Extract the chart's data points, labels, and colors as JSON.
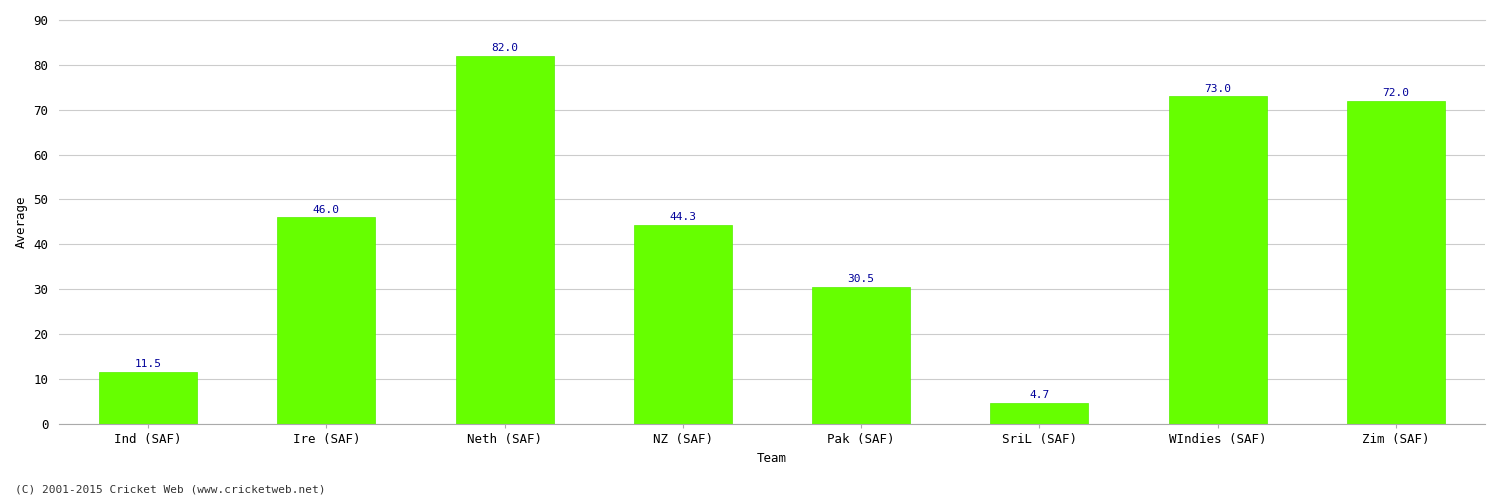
{
  "categories": [
    "Ind (SAF)",
    "Ire (SAF)",
    "Neth (SAF)",
    "NZ (SAF)",
    "Pak (SAF)",
    "SriL (SAF)",
    "WIndies (SAF)",
    "Zim (SAF)"
  ],
  "values": [
    11.5,
    46.0,
    82.0,
    44.3,
    30.5,
    4.7,
    73.0,
    72.0
  ],
  "bar_color": "#66ff00",
  "bar_edge_color": "#55ee00",
  "value_color": "#000099",
  "title": "",
  "xlabel": "Team",
  "ylabel": "Average",
  "ylim": [
    0,
    90
  ],
  "yticks": [
    0,
    10,
    20,
    30,
    40,
    50,
    60,
    70,
    80,
    90
  ],
  "background_color": "#ffffff",
  "grid_color": "#cccccc",
  "footer": "(C) 2001-2015 Cricket Web (www.cricketweb.net)",
  "axis_label_fontsize": 9,
  "tick_fontsize": 9,
  "value_fontsize": 8,
  "footer_fontsize": 8,
  "bar_width": 0.55
}
